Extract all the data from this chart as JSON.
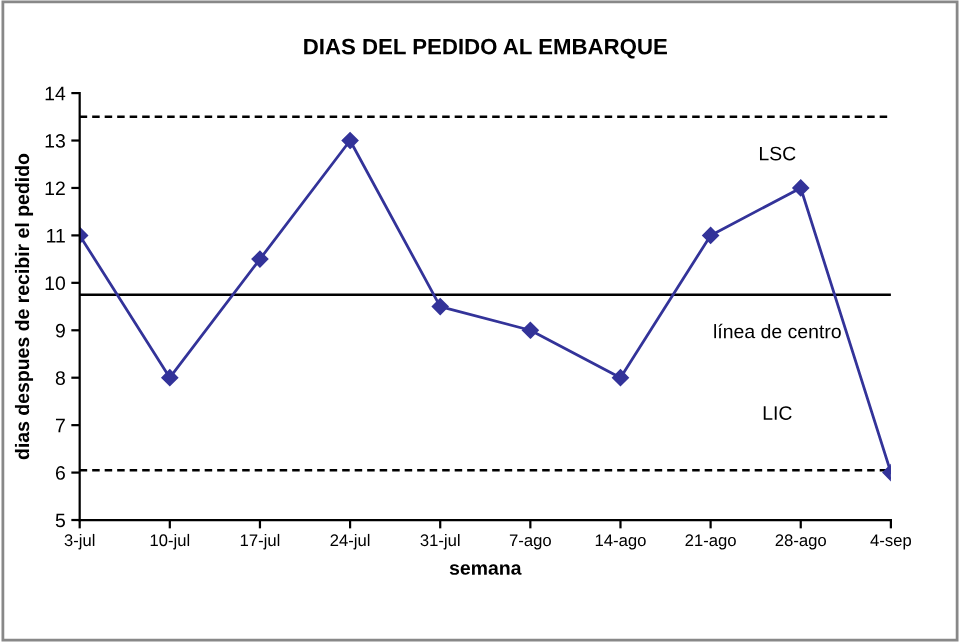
{
  "chart_data": {
    "type": "line",
    "title": "DIAS DEL PEDIDO AL EMBARQUE",
    "xlabel": "semana",
    "ylabel": "dias despues de recibir el pedido",
    "categories": [
      "3-jul",
      "10-jul",
      "17-jul",
      "24-jul",
      "31-jul",
      "7-ago",
      "14-ago",
      "21-ago",
      "28-ago",
      "4-sep"
    ],
    "series": [
      {
        "color": "#333399",
        "values": [
          11,
          8,
          10.5,
          13,
          9.5,
          9,
          8,
          11,
          12,
          6
        ]
      }
    ],
    "marker": "diamond",
    "line_style": "solid",
    "grid": false,
    "legend": false,
    "ylim": [
      5,
      14
    ],
    "yticks": [
      5,
      6,
      7,
      8,
      9,
      10,
      11,
      12,
      13,
      14
    ],
    "ref_lines": [
      {
        "axis": "y",
        "value": 13.5,
        "label": "LSC",
        "color": "#000000",
        "line_style": "dashed"
      },
      {
        "axis": "y",
        "value": 9.75,
        "label": "línea de centro",
        "color": "#000000",
        "line_style": "solid"
      },
      {
        "axis": "y",
        "value": 6.05,
        "label": "LIC",
        "color": "#000000",
        "line_style": "dashed"
      }
    ]
  }
}
